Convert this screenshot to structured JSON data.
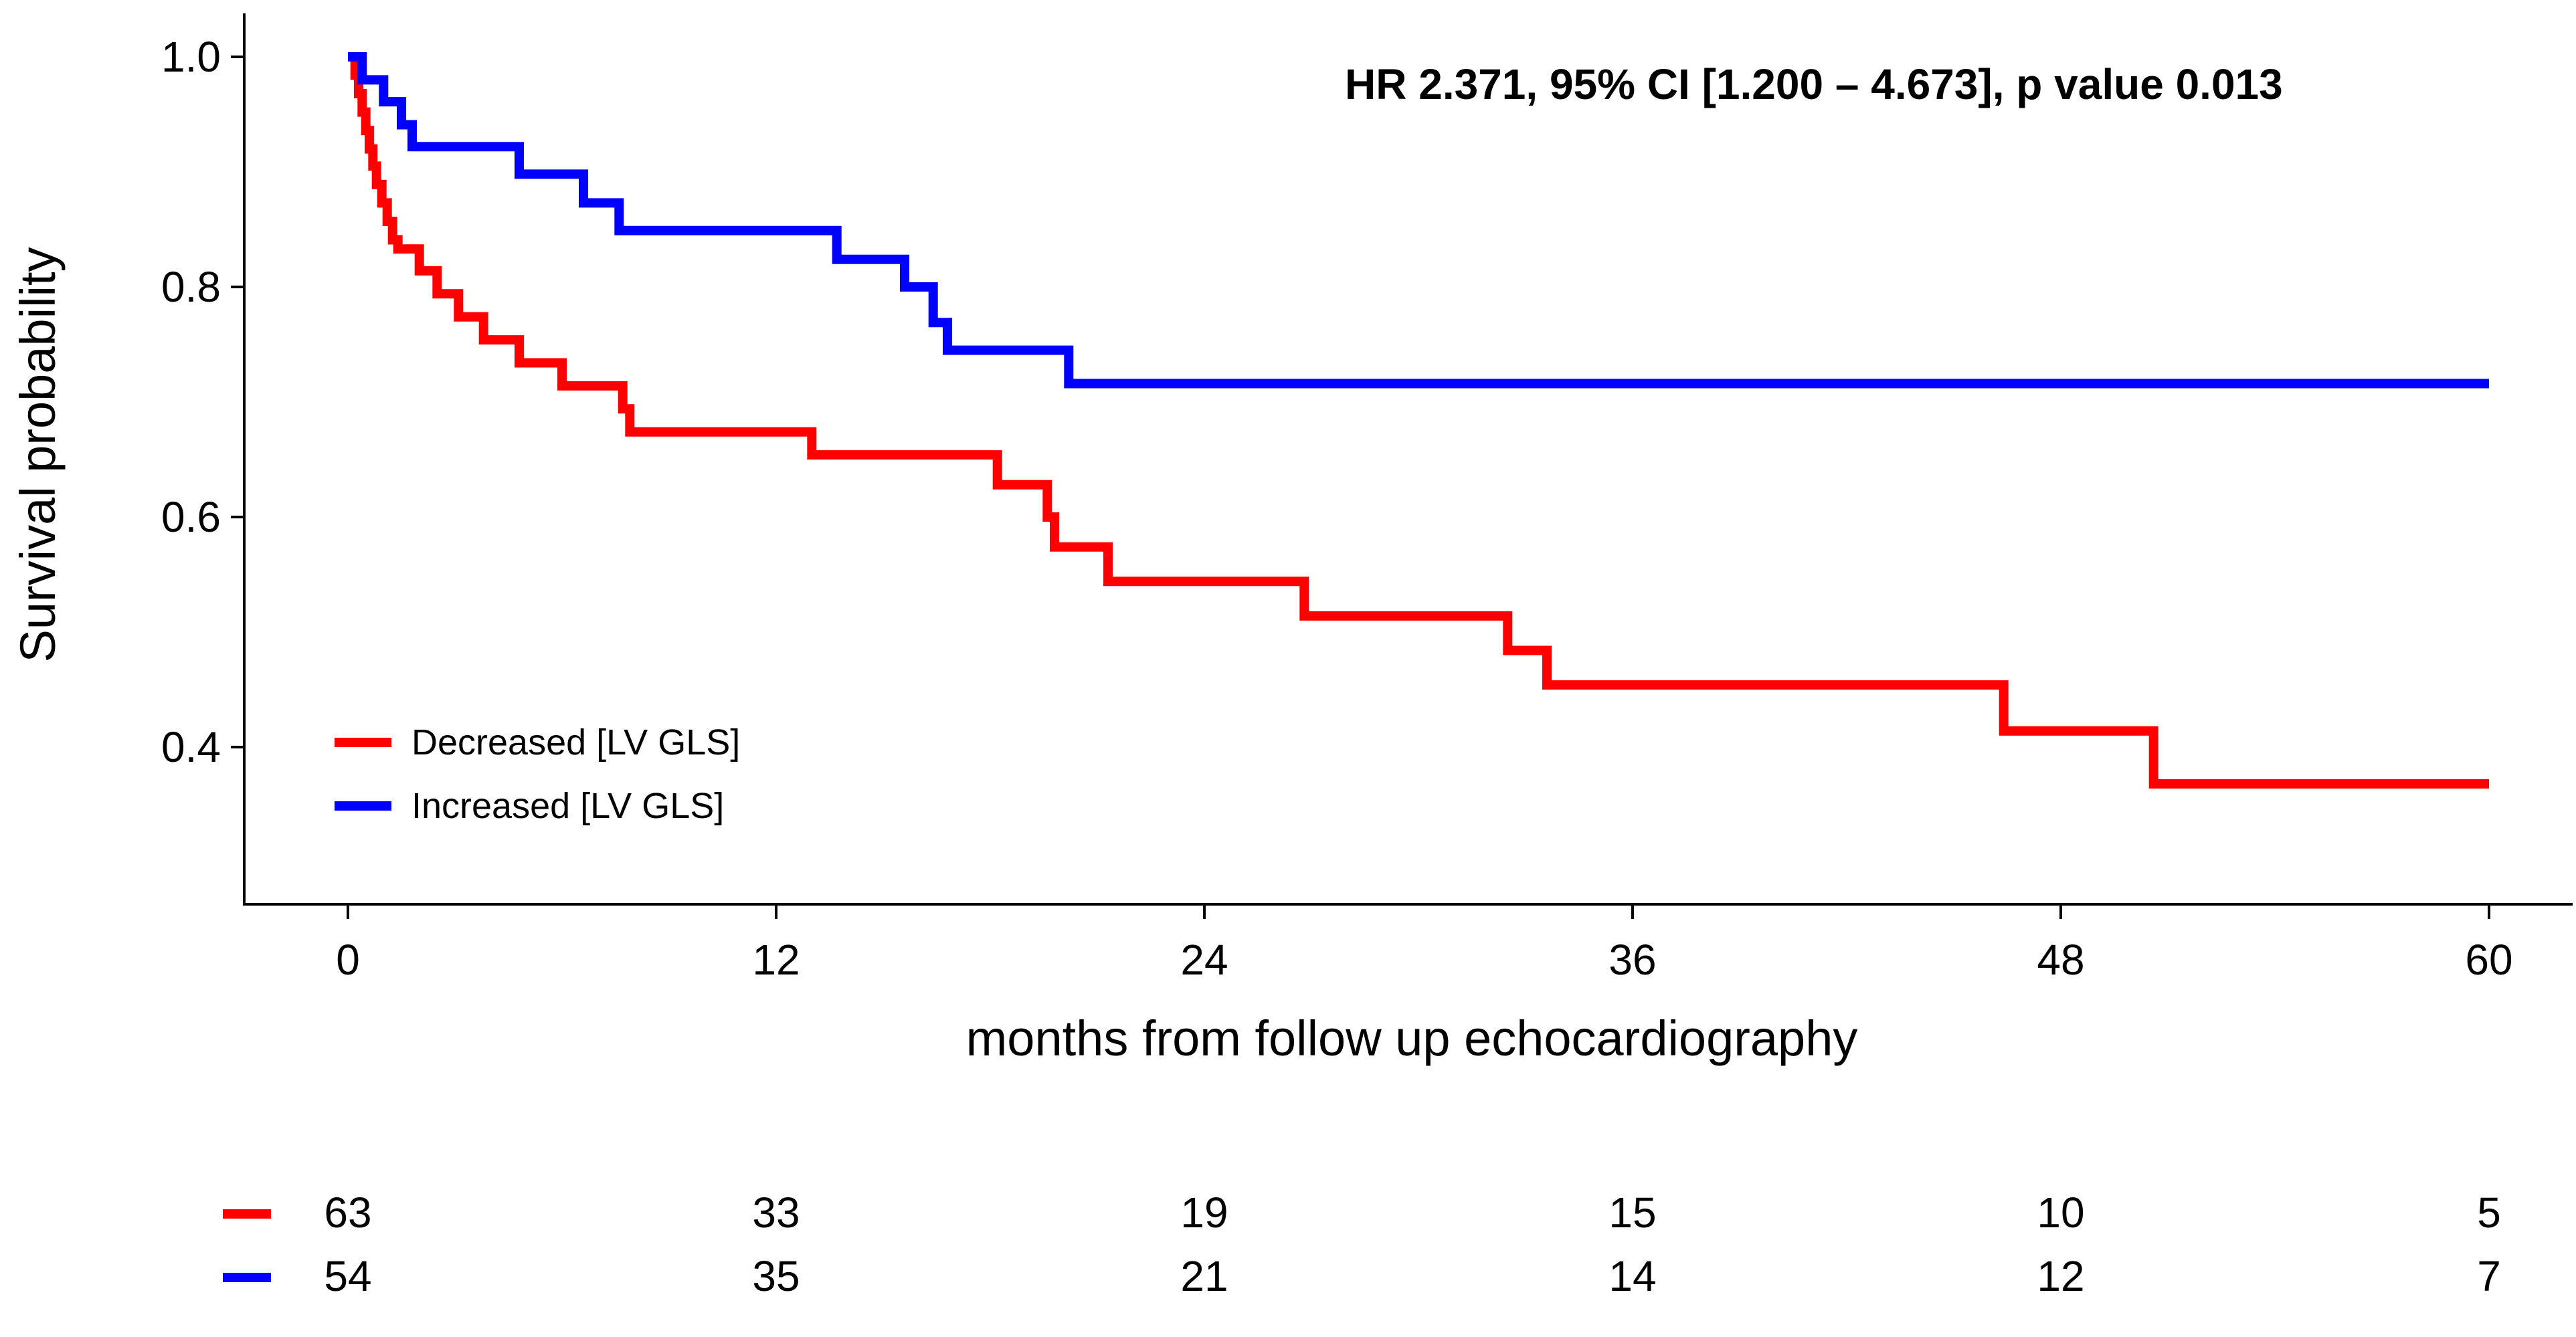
{
  "chart_data": {
    "type": "line",
    "subtype": "kaplan-meier",
    "title": "",
    "annotation": "HR 2.371, 95% CI [1.200  – 4.673],  p value 0.013",
    "xlabel": "months  from follow up echocardiography",
    "ylabel": "Survival  probability",
    "xlim": [
      -3,
      62
    ],
    "ylim": [
      0.28,
      1.03
    ],
    "xticks": [
      0,
      12,
      24,
      36,
      48,
      60
    ],
    "yticks": [
      0.4,
      0.6,
      0.8,
      1.0
    ],
    "xtick_labels": [
      "0",
      "12",
      "24",
      "36",
      "48",
      "60"
    ],
    "ytick_labels": [
      "0.4",
      "0.6",
      "0.8",
      "1.0"
    ],
    "legend_position": "bottom-left",
    "series": [
      {
        "name": "Decreased  [LV GLS]",
        "color": "#ff0000",
        "steps": [
          [
            0,
            1.0
          ],
          [
            0.2,
            0.984
          ],
          [
            0.3,
            0.968
          ],
          [
            0.4,
            0.952
          ],
          [
            0.5,
            0.936
          ],
          [
            0.6,
            0.92
          ],
          [
            0.7,
            0.905
          ],
          [
            0.8,
            0.889
          ],
          [
            0.95,
            0.873
          ],
          [
            1.1,
            0.857
          ],
          [
            1.25,
            0.841
          ],
          [
            1.4,
            0.833
          ],
          [
            2.0,
            0.814
          ],
          [
            2.5,
            0.794
          ],
          [
            3.1,
            0.774
          ],
          [
            3.8,
            0.754
          ],
          [
            4.8,
            0.734
          ],
          [
            6.0,
            0.714
          ],
          [
            7.7,
            0.694
          ],
          [
            7.9,
            0.674
          ],
          [
            13.0,
            0.654
          ],
          [
            18.2,
            0.628
          ],
          [
            19.6,
            0.6
          ],
          [
            19.8,
            0.574
          ],
          [
            21.3,
            0.544
          ],
          [
            26.8,
            0.514
          ],
          [
            32.5,
            0.484
          ],
          [
            33.6,
            0.454
          ],
          [
            46.4,
            0.414
          ],
          [
            50.6,
            0.368
          ],
          [
            60,
            0.368
          ]
        ]
      },
      {
        "name": "Increased  [LV GLS]",
        "color": "#0000ff",
        "steps": [
          [
            0,
            1.0
          ],
          [
            0.4,
            0.98
          ],
          [
            1.0,
            0.961
          ],
          [
            1.5,
            0.941
          ],
          [
            1.8,
            0.922
          ],
          [
            4.8,
            0.898
          ],
          [
            6.6,
            0.873
          ],
          [
            7.6,
            0.849
          ],
          [
            13.7,
            0.824
          ],
          [
            15.6,
            0.8
          ],
          [
            16.4,
            0.769
          ],
          [
            16.8,
            0.745
          ],
          [
            20.2,
            0.716
          ],
          [
            60,
            0.716
          ]
        ]
      }
    ],
    "risk_table": {
      "times": [
        0,
        12,
        24,
        36,
        48,
        60
      ],
      "rows": [
        {
          "name": "Decreased  [LV GLS]",
          "color": "#ff0000",
          "counts": [
            "63",
            "33",
            "19",
            "15",
            "10",
            "5"
          ]
        },
        {
          "name": "Increased  [LV GLS]",
          "color": "#0000ff",
          "counts": [
            "54",
            "35",
            "21",
            "14",
            "12",
            "7"
          ]
        }
      ]
    }
  }
}
